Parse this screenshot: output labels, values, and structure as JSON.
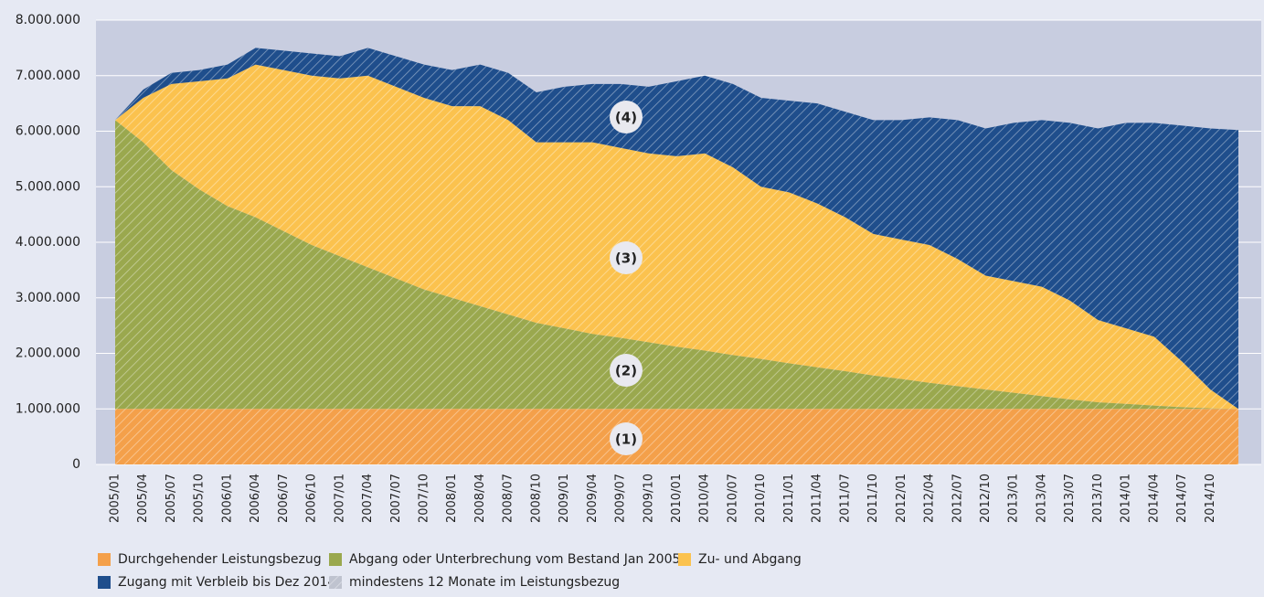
{
  "chart_data": {
    "type": "stacked-area",
    "categories": [
      "2005/01",
      "2005/04",
      "2005/07",
      "2005/10",
      "2006/01",
      "2006/04",
      "2006/07",
      "2006/10",
      "2007/01",
      "2007/04",
      "2007/07",
      "2007/10",
      "2008/01",
      "2008/04",
      "2008/07",
      "2008/10",
      "2009/01",
      "2009/04",
      "2009/07",
      "2009/10",
      "2010/01",
      "2010/04",
      "2010/07",
      "2010/10",
      "2011/01",
      "2011/04",
      "2011/07",
      "2011/10",
      "2012/01",
      "2012/04",
      "2012/07",
      "2012/10",
      "2013/01",
      "2013/04",
      "2013/07",
      "2013/10",
      "2014/01",
      "2014/04",
      "2014/07",
      "2014/10",
      null
    ],
    "series": [
      {
        "name": "Durchgehender Leistungsbezug",
        "color": "#f4a04a",
        "values": [
          1000000,
          1000000,
          1000000,
          1000000,
          1000000,
          1000000,
          1000000,
          1000000,
          1000000,
          1000000,
          1000000,
          1000000,
          1000000,
          1000000,
          1000000,
          1000000,
          1000000,
          1000000,
          1000000,
          1000000,
          1000000,
          1000000,
          1000000,
          1000000,
          1000000,
          1000000,
          1000000,
          1000000,
          1000000,
          1000000,
          1000000,
          1000000,
          1000000,
          1000000,
          1000000,
          1000000,
          1000000,
          1000000,
          1000000,
          1000000,
          1000000
        ]
      },
      {
        "name": "Abgang oder Unterbrechung vom Bestand Jan 2005",
        "color": "#9aa84e",
        "values": [
          5200000,
          4800000,
          4300000,
          3950000,
          3650000,
          3450000,
          3200000,
          2950000,
          2750000,
          2550000,
          2350000,
          2150000,
          2000000,
          1850000,
          1700000,
          1550000,
          1450000,
          1350000,
          1280000,
          1200000,
          1120000,
          1050000,
          970000,
          900000,
          820000,
          750000,
          680000,
          600000,
          540000,
          470000,
          410000,
          350000,
          290000,
          230000,
          170000,
          120000,
          90000,
          60000,
          30000,
          10000,
          0
        ]
      },
      {
        "name": "Zu- und Abgang",
        "color": "#fbc24e",
        "values": [
          0,
          800000,
          1550000,
          1950000,
          2300000,
          2750000,
          2900000,
          3050000,
          3200000,
          3450000,
          3450000,
          3450000,
          3450000,
          3600000,
          3500000,
          3250000,
          3350000,
          3450000,
          3420000,
          3400000,
          3430000,
          3550000,
          3380000,
          3100000,
          3080000,
          2950000,
          2770000,
          2550000,
          2510000,
          2480000,
          2290000,
          2050000,
          2010000,
          1970000,
          1780000,
          1480000,
          1360000,
          1240000,
          820000,
          340000,
          0
        ]
      },
      {
        "name": "Zugang mit Verbleib bis Dez 2014",
        "color": "#1f4e8c",
        "values": [
          0,
          150000,
          200000,
          200000,
          250000,
          300000,
          350000,
          400000,
          400000,
          500000,
          550000,
          600000,
          650000,
          750000,
          850000,
          900000,
          1000000,
          1050000,
          1150000,
          1200000,
          1350000,
          1400000,
          1500000,
          1600000,
          1650000,
          1800000,
          1900000,
          2050000,
          2150000,
          2300000,
          2500000,
          2650000,
          2850000,
          3000000,
          3200000,
          3450000,
          3700000,
          3850000,
          4250000,
          4700000,
          5020000
        ]
      }
    ],
    "hatch": {
      "name": "mindestens 12 Monate im Leistungsbezug"
    },
    "annotations": [
      "(1)",
      "(2)",
      "(3)",
      "(4)"
    ],
    "ylim": [
      0,
      8000000
    ],
    "yticks": [
      0,
      {
        "value": 1000000,
        "label": "1.000.000"
      },
      {
        "value": 2000000,
        "label": "2.000.000"
      },
      {
        "value": 3000000,
        "label": "3.000.000"
      },
      {
        "value": 4000000,
        "label": "4.000.000"
      },
      {
        "value": 5000000,
        "label": "5.000.000"
      },
      {
        "value": 6000000,
        "label": "6.000.000"
      },
      {
        "value": 7000000,
        "label": "7.000.000"
      },
      {
        "value": 8000000,
        "label": "8.000.000"
      }
    ],
    "grid": true
  }
}
